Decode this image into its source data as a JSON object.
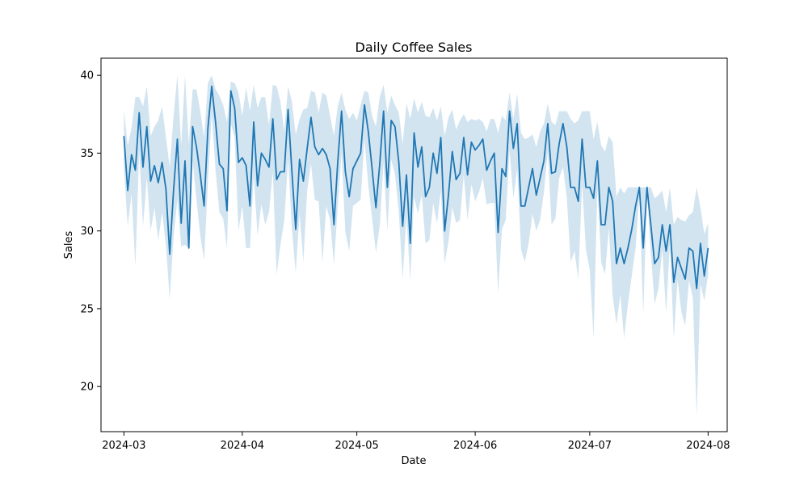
{
  "chart_data": {
    "type": "line",
    "title": "Daily Coffee Sales",
    "xlabel": "Date",
    "ylabel": "Sales",
    "x_start": "2024-03-01",
    "x_end": "2024-07-31",
    "xlim": [
      "2024-02-24",
      "2024-08-06"
    ],
    "ylim": [
      17.1,
      41.1
    ],
    "x_ticks": [
      {
        "date": "2024-03-01",
        "label": "2024-03"
      },
      {
        "date": "2024-04-01",
        "label": "2024-04"
      },
      {
        "date": "2024-05-01",
        "label": "2024-05"
      },
      {
        "date": "2024-06-01",
        "label": "2024-06"
      },
      {
        "date": "2024-07-01",
        "label": "2024-07"
      },
      {
        "date": "2024-08-01",
        "label": "2024-08"
      }
    ],
    "y_ticks": [
      20,
      25,
      30,
      35,
      40
    ],
    "grid": false,
    "colors": {
      "line": "#1f77b4",
      "band": "#1f77b4"
    },
    "series": [
      {
        "values": [
          36.1,
          32.6,
          34.9,
          33.9,
          37.6,
          34.1,
          36.7,
          33.2,
          34.2,
          33.1,
          34.4,
          32.7,
          28.5,
          32.6,
          35.9,
          30.5,
          34.5,
          28.9,
          36.7,
          35.4,
          33.6,
          31.6,
          36.6,
          39.3,
          37.0,
          34.3,
          34.0,
          31.3,
          39.0,
          37.9,
          34.4,
          34.7,
          34.2,
          31.6,
          37.0,
          32.9,
          35.0,
          34.6,
          34.1,
          37.2,
          33.3,
          33.8,
          33.8,
          37.8,
          33.8,
          30.1,
          34.6,
          33.2,
          35.3,
          37.3,
          35.4,
          34.9,
          35.3,
          34.9,
          34.0,
          30.4,
          34.4,
          37.7,
          33.8,
          32.2,
          34.0,
          34.5,
          35.0,
          38.1,
          36.4,
          34.0,
          31.5,
          34.3,
          37.7,
          32.8,
          37.1,
          36.7,
          34.4,
          30.3,
          33.6,
          29.2,
          36.3,
          34.1,
          35.4,
          32.2,
          32.8,
          35.0,
          33.7,
          36.0,
          30.0,
          32.3,
          35.1,
          33.3,
          33.7,
          36.0,
          33.6,
          35.7,
          35.2,
          35.5,
          35.9,
          33.9,
          34.5,
          35.0,
          29.9,
          34.0,
          33.5,
          37.7,
          35.3,
          36.9,
          31.6,
          31.6,
          32.8,
          34.0,
          32.3,
          33.4,
          34.5,
          36.9,
          33.7,
          33.8,
          35.6,
          36.9,
          35.4,
          32.8,
          32.8,
          31.9,
          35.9,
          32.8,
          32.8,
          32.1,
          34.5,
          30.4,
          30.4,
          32.8,
          31.9,
          27.9,
          28.9,
          27.9,
          28.9,
          30.1,
          31.6,
          32.8,
          28.9,
          32.8,
          30.4,
          27.9,
          28.3,
          30.4,
          28.7,
          30.4,
          26.7,
          28.3,
          27.6,
          26.9,
          28.9,
          28.7,
          26.3,
          29.2,
          27.1,
          28.9
        ],
        "upper": [
          37.8,
          35.5,
          36.6,
          38.6,
          38.6,
          38.0,
          39.3,
          36.1,
          36.7,
          37.1,
          38.0,
          36.0,
          34.1,
          37.4,
          40.0,
          35.5,
          40.0,
          35.6,
          39.1,
          39.1,
          37.7,
          36.0,
          39.5,
          40.0,
          39.1,
          38.7,
          38.1,
          37.0,
          39.6,
          39.5,
          38.9,
          37.4,
          39.2,
          37.7,
          39.4,
          37.9,
          38.6,
          38.6,
          36.8,
          39.4,
          39.3,
          38.3,
          36.4,
          39.3,
          38.3,
          36.2,
          37.2,
          37.8,
          37.9,
          39.0,
          38.9,
          37.6,
          38.9,
          38.7,
          37.4,
          36.1,
          38.0,
          38.9,
          37.8,
          37.2,
          37.6,
          37.1,
          38.1,
          39.0,
          38.9,
          37.4,
          36.7,
          38.6,
          39.4,
          37.6,
          38.7,
          38.1,
          37.6,
          35.6,
          38.2,
          37.2,
          38.5,
          37.6,
          38.3,
          37.4,
          37.3,
          37.9,
          37.1,
          38.0,
          36.1,
          37.3,
          37.8,
          36.5,
          37.1,
          37.5,
          37.0,
          37.2,
          37.1,
          37.2,
          37.0,
          36.4,
          37.2,
          37.2,
          36.3,
          37.4,
          37.1,
          38.9,
          37.2,
          38.8,
          36.3,
          35.9,
          36.0,
          36.2,
          35.4,
          36.4,
          36.9,
          38.2,
          37.0,
          36.8,
          37.7,
          37.7,
          37.7,
          37.2,
          36.9,
          37.1,
          37.7,
          37.7,
          37.7,
          35.9,
          37.0,
          35.5,
          35.1,
          36.1,
          35.7,
          32.2,
          32.8,
          32.4,
          32.8,
          32.8,
          32.8,
          32.8,
          32.8,
          32.8,
          32.8,
          32.1,
          32.3,
          32.6,
          31.2,
          32.8,
          30.4,
          30.9,
          30.7,
          30.6,
          31.0,
          31.2,
          32.8,
          31.5,
          29.8,
          30.5
        ],
        "lower": [
          34.0,
          30.3,
          32.4,
          27.7,
          35.1,
          30.3,
          33.4,
          30.0,
          31.5,
          29.4,
          31.2,
          29.1,
          25.6,
          29.6,
          32.0,
          29.0,
          29.1,
          28.9,
          34.5,
          32.0,
          29.7,
          28.1,
          33.1,
          37.5,
          33.9,
          31.2,
          30.8,
          28.9,
          36.9,
          36.0,
          30.0,
          31.6,
          28.9,
          28.9,
          33.6,
          29.7,
          31.7,
          30.4,
          31.2,
          33.8,
          27.2,
          29.1,
          30.7,
          34.6,
          30.1,
          27.3,
          31.1,
          28.0,
          32.6,
          34.3,
          32.0,
          31.9,
          28.0,
          31.6,
          30.7,
          27.8,
          31.6,
          35.0,
          29.9,
          28.7,
          31.6,
          31.8,
          32.0,
          35.9,
          32.9,
          30.8,
          28.6,
          30.3,
          34.4,
          30.0,
          34.6,
          33.6,
          31.2,
          26.9,
          30.9,
          26.8,
          32.2,
          31.1,
          32.3,
          29.2,
          29.4,
          31.8,
          30.5,
          32.6,
          27.9,
          29.3,
          31.5,
          30.5,
          30.7,
          33.6,
          30.7,
          33.0,
          31.9,
          32.5,
          33.4,
          31.7,
          31.8,
          31.8,
          26.0,
          30.1,
          30.7,
          35.2,
          32.1,
          34.0,
          28.8,
          28.0,
          29.2,
          31.1,
          30.0,
          30.7,
          32.5,
          35.1,
          30.4,
          30.8,
          33.4,
          34.1,
          32.1,
          28.0,
          28.7,
          26.9,
          33.0,
          28.8,
          27.5,
          23.1,
          32.7,
          28.0,
          27.2,
          30.2,
          25.8,
          24.0,
          25.9,
          23.1,
          25.3,
          27.1,
          28.9,
          32.3,
          24.6,
          32.5,
          28.5,
          25.3,
          26.3,
          28.8,
          24.7,
          29.2,
          23.1,
          26.8,
          24.8,
          23.9,
          26.8,
          25.7,
          18.1,
          26.6,
          25.5,
          27.2
        ]
      }
    ]
  }
}
